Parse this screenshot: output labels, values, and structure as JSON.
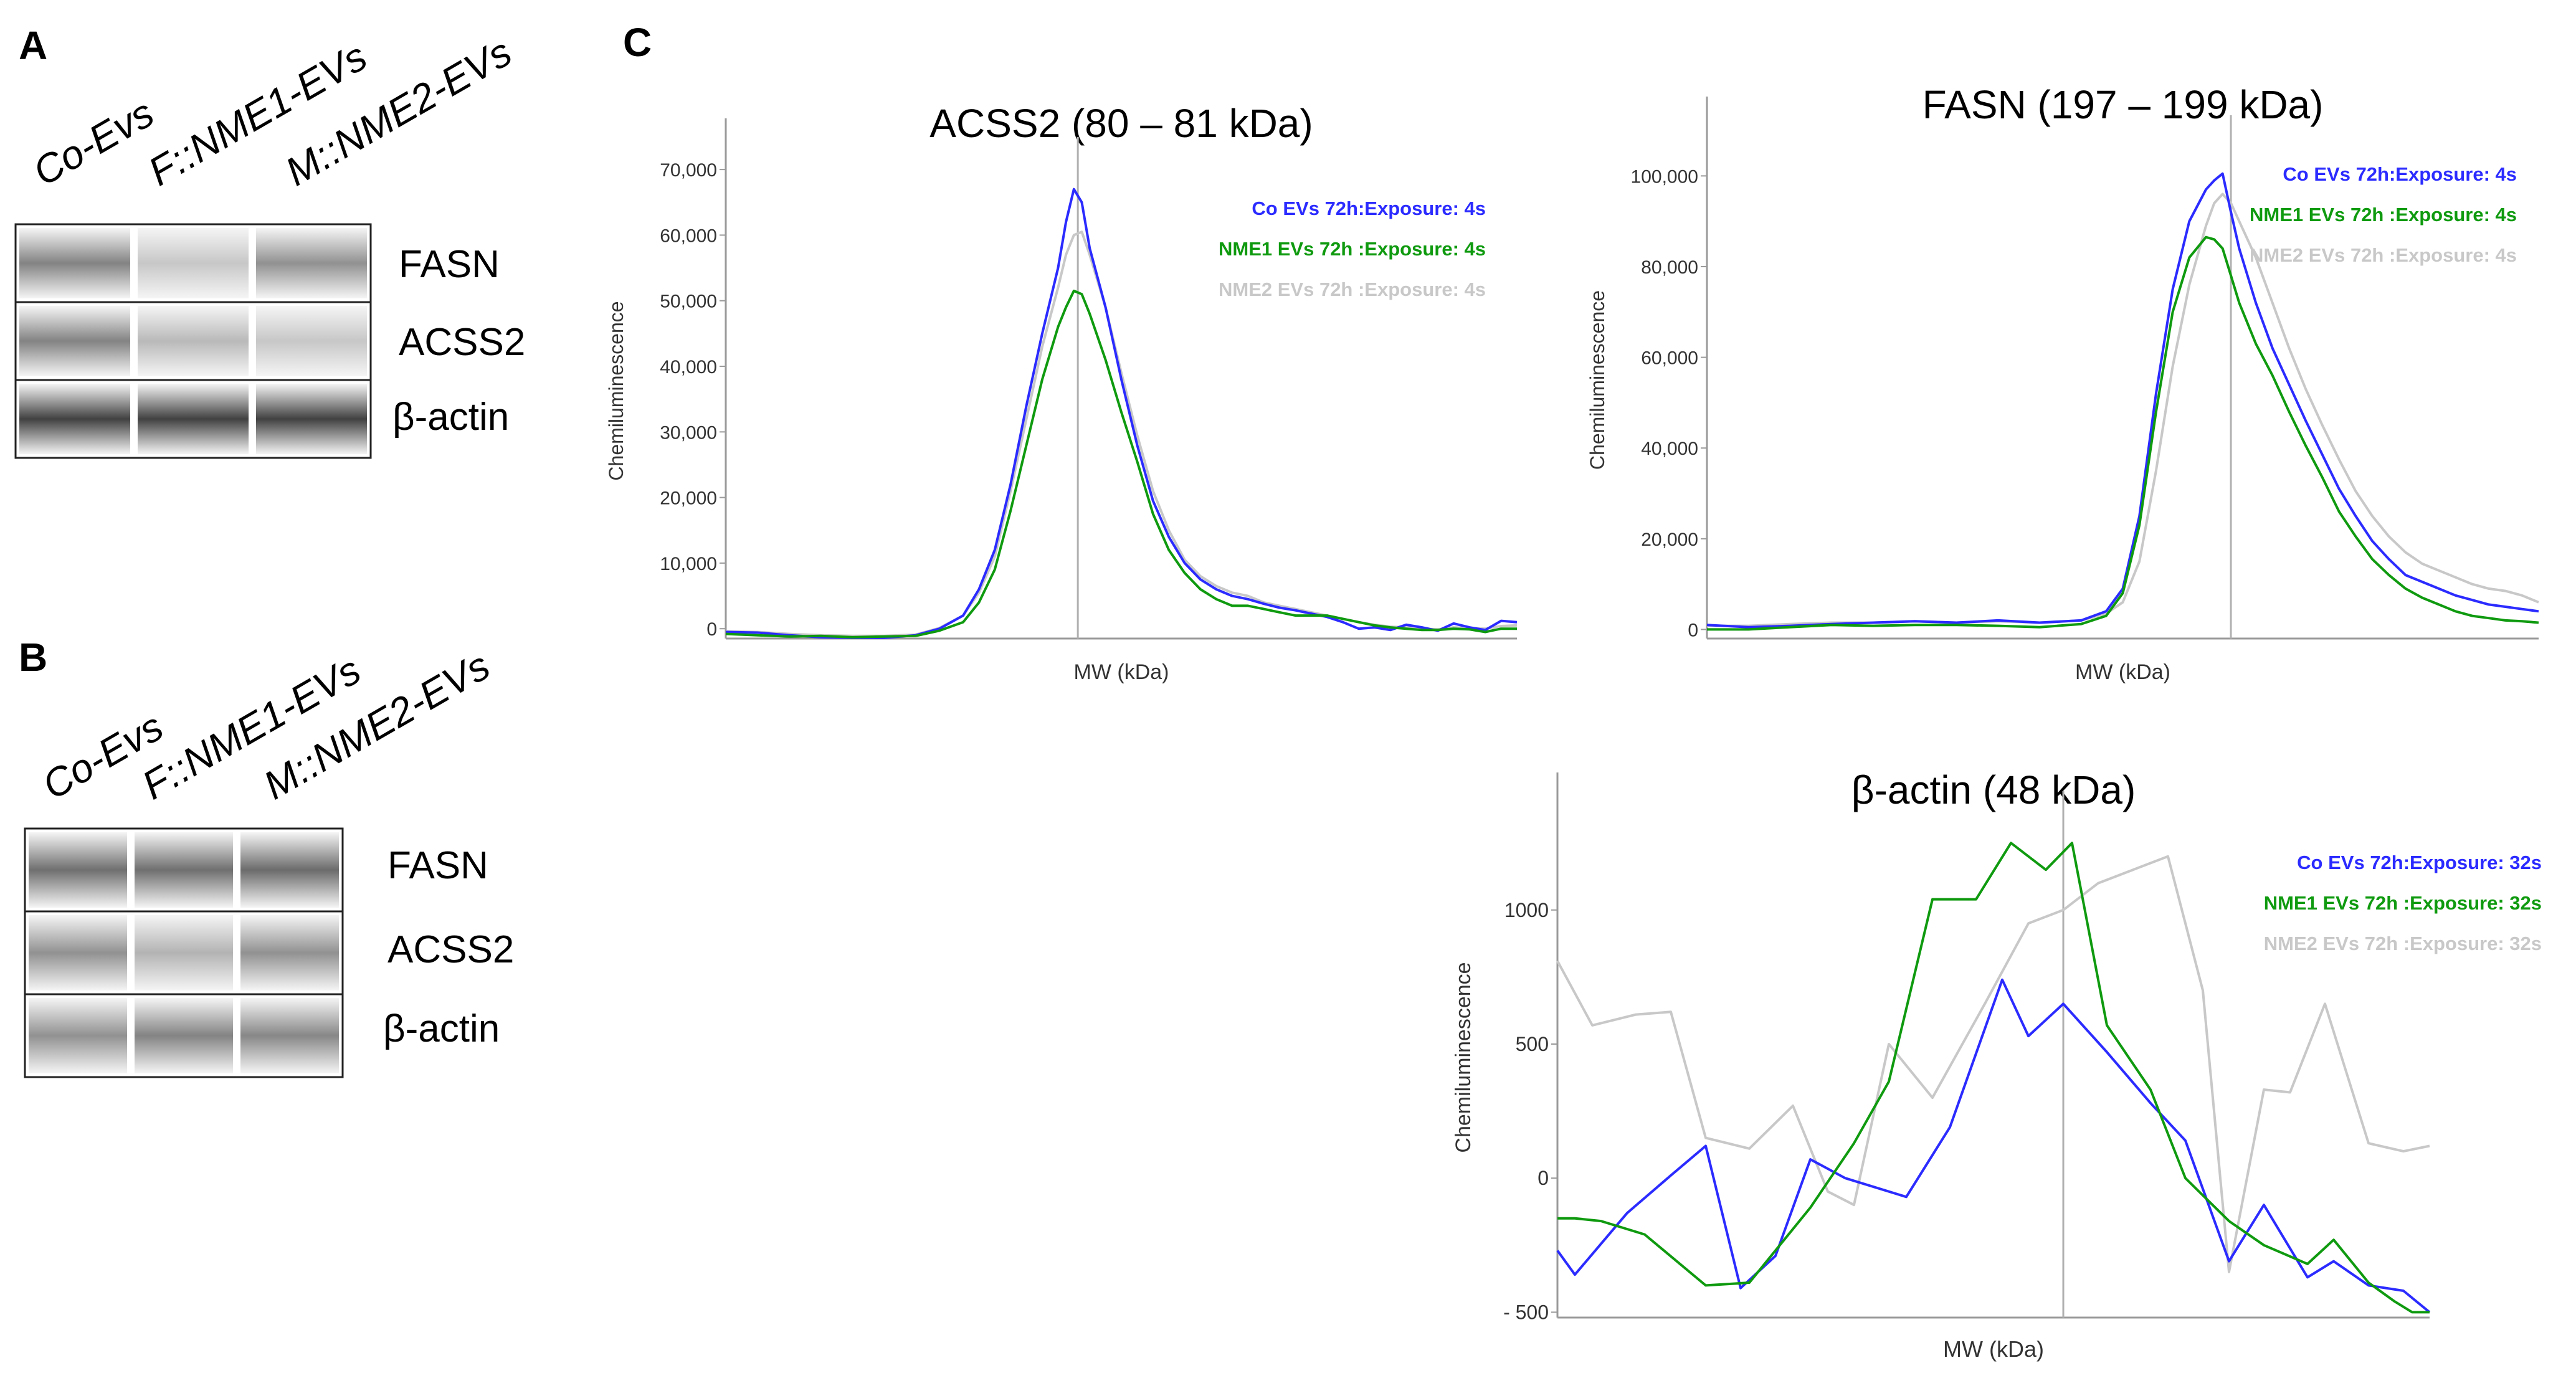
{
  "panels": {
    "A": {
      "letter": "A",
      "lanes": [
        "Co-Evs",
        "F::NME1-EVs",
        "M::NME2-EVs"
      ],
      "rows": [
        "FASN",
        "ACSS2",
        "β-actin"
      ],
      "band_intensity": [
        [
          0.62,
          0.28,
          0.55
        ],
        [
          0.62,
          0.35,
          0.28
        ],
        [
          0.95,
          0.95,
          0.95
        ]
      ]
    },
    "B": {
      "letter": "B",
      "lanes": [
        "Co-Evs",
        "F::NME1-EVs",
        "M::NME2-EVs"
      ],
      "rows": [
        "FASN",
        "ACSS2",
        "β-actin"
      ],
      "band_intensity": [
        [
          0.72,
          0.72,
          0.74
        ],
        [
          0.55,
          0.38,
          0.55
        ],
        [
          0.55,
          0.62,
          0.6
        ]
      ]
    },
    "C": {
      "letter": "C"
    }
  },
  "colors": {
    "co": "#2b2bff",
    "nme1": "#0f9a0f",
    "nme2": "#c8c8c8",
    "axis": "#9a9a9a"
  },
  "chart_data": [
    {
      "type": "line",
      "title": "ACSS2 (80 – 81 kDa)",
      "xlabel": "MW (kDa)",
      "ylabel": "Chemiluminescence",
      "ylim": [
        -1500,
        74000
      ],
      "yticks": [
        0,
        10000,
        20000,
        30000,
        40000,
        50000,
        60000,
        70000
      ],
      "ytick_labels": [
        "0",
        "10,000",
        "20,000",
        "30,000",
        "40,000",
        "50,000",
        "60,000",
        "70,000"
      ],
      "marker_x": 44.5,
      "legend_position": "top-right",
      "series": [
        {
          "name": "Co EVs 72h:Exposure: 4s",
          "color_key": "co",
          "x": [
            0,
            4,
            8,
            12,
            16,
            20,
            24,
            27,
            30,
            32,
            34,
            36,
            38,
            40,
            42,
            43,
            44,
            45,
            46,
            48,
            50,
            52,
            54,
            56,
            58,
            60,
            62,
            64,
            66,
            68,
            70,
            72,
            74,
            76,
            78,
            80,
            82,
            84,
            86,
            88,
            90,
            92,
            94,
            96,
            98,
            100
          ],
          "y": [
            -500,
            -600,
            -1000,
            -1300,
            -1400,
            -1400,
            -1000,
            0,
            2000,
            6000,
            12000,
            22000,
            34000,
            45000,
            55000,
            62000,
            67000,
            65000,
            58000,
            49000,
            38000,
            28000,
            19500,
            14000,
            10000,
            7500,
            6000,
            5000,
            4500,
            3800,
            3200,
            2800,
            2300,
            1800,
            1000,
            0,
            200,
            -200,
            600,
            200,
            -300,
            800,
            200,
            -200,
            1200,
            1000
          ]
        },
        {
          "name": "NME1 EVs 72h :Exposure: 4s",
          "color_key": "nme1",
          "x": [
            0,
            4,
            8,
            12,
            16,
            20,
            24,
            27,
            30,
            32,
            34,
            36,
            38,
            40,
            42,
            43,
            44,
            45,
            46,
            48,
            50,
            52,
            54,
            56,
            58,
            60,
            62,
            64,
            66,
            68,
            70,
            72,
            74,
            76,
            78,
            80,
            82,
            84,
            86,
            88,
            90,
            92,
            94,
            96,
            98,
            100
          ],
          "y": [
            -800,
            -1000,
            -1200,
            -1100,
            -1300,
            -1200,
            -1100,
            -300,
            1000,
            4000,
            9000,
            18000,
            28000,
            38000,
            46000,
            49000,
            51500,
            51000,
            48000,
            41000,
            33000,
            25500,
            17500,
            12000,
            8500,
            6000,
            4500,
            3500,
            3500,
            3000,
            2500,
            2000,
            2000,
            2000,
            1500,
            1000,
            500,
            200,
            0,
            -200,
            -200,
            0,
            -100,
            -500,
            0,
            0
          ]
        },
        {
          "name": "NME2 EVs 72h :Exposure: 4s",
          "color_key": "nme2",
          "x": [
            0,
            4,
            8,
            12,
            16,
            20,
            24,
            27,
            30,
            32,
            34,
            36,
            38,
            40,
            42,
            43,
            44,
            45,
            46,
            48,
            50,
            52,
            54,
            56,
            58,
            60,
            62,
            64,
            66,
            68,
            70,
            72,
            74,
            76,
            78,
            80,
            82,
            84,
            86,
            88,
            90,
            92,
            94,
            96,
            98,
            100
          ],
          "y": [
            -400,
            -500,
            -800,
            -1000,
            -1100,
            -1100,
            -900,
            100,
            2000,
            5500,
            11000,
            21000,
            32000,
            43000,
            52000,
            57000,
            60000,
            60500,
            57000,
            49000,
            39000,
            29500,
            21000,
            15000,
            10500,
            8000,
            6500,
            5500,
            5000,
            4000,
            3500,
            3000,
            2500,
            2000,
            1500,
            1000,
            600,
            300,
            200,
            0,
            -100,
            200,
            100,
            0,
            400,
            500
          ]
        }
      ]
    },
    {
      "type": "line",
      "title": "FASN (197 – 199 kDa)",
      "xlabel": "MW (kDa)",
      "ylabel": "Chemiluminescence",
      "ylim": [
        -2000,
        112000
      ],
      "yticks": [
        0,
        20000,
        40000,
        60000,
        80000,
        100000
      ],
      "ytick_labels": [
        "0",
        "20,000",
        "40,000",
        "60,000",
        "80,000",
        "100,000"
      ],
      "marker_x": 63,
      "legend_position": "top-right",
      "series": [
        {
          "name": "Co EVs 72h:Exposure: 4s",
          "color_key": "co",
          "x": [
            0,
            5,
            10,
            15,
            20,
            25,
            30,
            35,
            40,
            45,
            48,
            50,
            52,
            54,
            56,
            58,
            60,
            61,
            62,
            63,
            64,
            66,
            68,
            70,
            72,
            74,
            76,
            78,
            80,
            82,
            84,
            86,
            88,
            90,
            92,
            94,
            96,
            98,
            100
          ],
          "y": [
            1000,
            500,
            800,
            1200,
            1500,
            1800,
            1500,
            2000,
            1500,
            2000,
            4000,
            9000,
            25000,
            52000,
            75000,
            90000,
            97000,
            99000,
            100500,
            92000,
            84000,
            72000,
            62000,
            54000,
            46000,
            38500,
            31000,
            25000,
            19500,
            15500,
            12000,
            10500,
            9000,
            7500,
            6500,
            5500,
            5000,
            4500,
            4000
          ]
        },
        {
          "name": "NME1 EVs 72h :Exposure: 4s",
          "color_key": "nme1",
          "x": [
            0,
            5,
            10,
            15,
            20,
            25,
            30,
            35,
            40,
            45,
            48,
            50,
            52,
            54,
            56,
            58,
            60,
            61,
            62,
            63,
            64,
            66,
            68,
            70,
            72,
            74,
            76,
            78,
            80,
            82,
            84,
            86,
            88,
            90,
            92,
            94,
            96,
            98,
            100
          ],
          "y": [
            0,
            0,
            500,
            1000,
            800,
            1000,
            1000,
            800,
            500,
            1200,
            3000,
            8000,
            23000,
            48000,
            70000,
            82000,
            86500,
            86000,
            84000,
            78000,
            72000,
            63000,
            56000,
            48000,
            40500,
            33500,
            26000,
            20500,
            15500,
            12000,
            9000,
            7000,
            5500,
            4000,
            3000,
            2500,
            2000,
            1800,
            1500
          ]
        },
        {
          "name": "NME2 EVs 72h :Exposure: 4s",
          "color_key": "nme2",
          "x": [
            0,
            5,
            10,
            15,
            20,
            25,
            30,
            35,
            40,
            45,
            48,
            50,
            52,
            54,
            56,
            58,
            60,
            61,
            62,
            63,
            64,
            66,
            68,
            70,
            72,
            74,
            76,
            78,
            80,
            82,
            84,
            86,
            88,
            90,
            92,
            94,
            96,
            98,
            100
          ],
          "y": [
            800,
            800,
            1200,
            1500,
            1500,
            1800,
            1500,
            1800,
            1500,
            2000,
            3500,
            6000,
            15000,
            35000,
            58000,
            76000,
            89000,
            94000,
            96000,
            94000,
            90000,
            82000,
            72000,
            62000,
            53000,
            45000,
            37500,
            30500,
            25000,
            20500,
            17000,
            14500,
            13000,
            11500,
            10000,
            9000,
            8500,
            7500,
            6000
          ]
        }
      ]
    },
    {
      "type": "line",
      "title": "β-actin (48 kDa)",
      "xlabel": "MW (kDa)",
      "ylabel": "Chemiluminescence",
      "ylim": [
        -520,
        1420
      ],
      "yticks": [
        -500,
        0,
        500,
        1000
      ],
      "ytick_labels": [
        "- 500",
        "0",
        "500",
        "1000"
      ],
      "marker_x": 58,
      "legend_position": "top-right",
      "series": [
        {
          "name": "Co EVs 72h:Exposure: 32s",
          "color_key": "co",
          "x": [
            0,
            2,
            8,
            13,
            17,
            21,
            25,
            29,
            33,
            40,
            45,
            51,
            54,
            58,
            63,
            68,
            72,
            77,
            81,
            86,
            89,
            93,
            97,
            100
          ],
          "y": [
            -270,
            -360,
            -130,
            10,
            120,
            -410,
            -290,
            70,
            0,
            -70,
            190,
            740,
            530,
            650,
            470,
            280,
            140,
            -310,
            -100,
            -370,
            -310,
            -400,
            -420,
            -500
          ]
        },
        {
          "name": "NME1 EVs 72h :Exposure: 32s",
          "color_key": "nme1",
          "x": [
            0,
            2,
            5,
            10,
            17,
            22,
            29,
            34,
            38,
            43,
            48,
            52,
            56,
            59,
            63,
            68,
            72,
            77,
            81,
            86,
            89,
            93,
            96,
            98,
            100
          ],
          "y": [
            -150,
            -150,
            -160,
            -210,
            -400,
            -390,
            -110,
            130,
            360,
            1040,
            1040,
            1250,
            1150,
            1250,
            570,
            330,
            0,
            -160,
            -250,
            -320,
            -230,
            -390,
            -460,
            -500,
            -500
          ]
        },
        {
          "name": "NME2 EVs 72h :Exposure: 32s",
          "color_key": "nme2",
          "x": [
            0,
            4,
            9,
            13,
            17,
            22,
            27,
            31,
            34,
            38,
            43,
            49,
            54,
            58,
            62,
            66,
            70,
            74,
            77,
            81,
            84,
            88,
            93,
            97,
            100
          ],
          "y": [
            810,
            570,
            610,
            620,
            150,
            110,
            270,
            -50,
            -100,
            500,
            300,
            650,
            950,
            1000,
            1100,
            1150,
            1200,
            700,
            -350,
            330,
            320,
            650,
            130,
            100,
            120
          ]
        }
      ]
    }
  ]
}
